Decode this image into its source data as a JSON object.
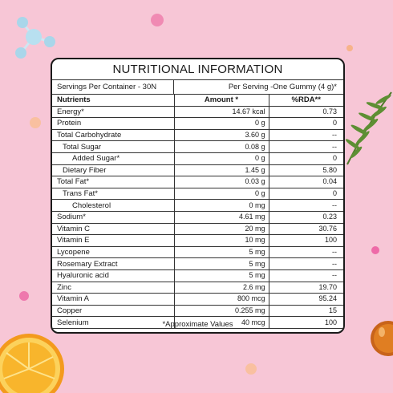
{
  "title": "NUTRITIONAL INFORMATION",
  "servings_label": "Servings Per Container - 30N",
  "per_serving_label": "Per Serving -One Gummy (4 g)*",
  "headers": {
    "nutrients": "Nutrients",
    "amount": "Amount *",
    "rda": "%RDA**"
  },
  "rows": [
    {
      "name": "Energy*",
      "amount": "14.67 kcal",
      "rda": "0.73",
      "indent": 0
    },
    {
      "name": "Protein",
      "amount": "0 g",
      "rda": "0",
      "indent": 0
    },
    {
      "name": "Total Carbohydrate",
      "amount": "3.60 g",
      "rda": "--",
      "indent": 0
    },
    {
      "name": "Total Sugar",
      "amount": "0.08 g",
      "rda": "--",
      "indent": 1
    },
    {
      "name": "Added Sugar*",
      "amount": "0 g",
      "rda": "0",
      "indent": 2
    },
    {
      "name": "Dietary Fiber",
      "amount": "1.45 g",
      "rda": "5.80",
      "indent": 1
    },
    {
      "name": "Total Fat*",
      "amount": "0.03 g",
      "rda": "0.04",
      "indent": 0
    },
    {
      "name": "Trans Fat*",
      "amount": "0 g",
      "rda": "0",
      "indent": 1
    },
    {
      "name": "Cholesterol",
      "amount": "0 mg",
      "rda": "--",
      "indent": 2
    },
    {
      "name": "Sodium*",
      "amount": "4.61 mg",
      "rda": "0.23",
      "indent": 0
    },
    {
      "name": "Vitamin C",
      "amount": "20 mg",
      "rda": "30.76",
      "indent": 0
    },
    {
      "name": "Vitamin E",
      "amount": "10 mg",
      "rda": "100",
      "indent": 0
    },
    {
      "name": "Lycopene",
      "amount": "5 mg",
      "rda": "--",
      "indent": 0
    },
    {
      "name": "Rosemary Extract",
      "amount": "5 mg",
      "rda": "--",
      "indent": 0
    },
    {
      "name": "Hyaluronic acid",
      "amount": "5 mg",
      "rda": "--",
      "indent": 0
    },
    {
      "name": "Zinc",
      "amount": "2.6 mg",
      "rda": "19.70",
      "indent": 0
    },
    {
      "name": "Vitamin A",
      "amount": "800 mcg",
      "rda": "95.24",
      "indent": 0
    },
    {
      "name": "Copper",
      "amount": "0.255 mg",
      "rda": "15",
      "indent": 0
    },
    {
      "name": "Selenium",
      "amount": "40 mcg",
      "rda": "100",
      "indent": 0
    }
  ],
  "footnote": "*Approximate Values",
  "colors": {
    "background": "#f7c6d6",
    "border": "#1a1a1a",
    "panel": "#ffffff"
  },
  "decorations": [
    "molecule-icon",
    "rosemary-sprig-icon",
    "orange-slice-icon",
    "amber-gummy-icon"
  ]
}
